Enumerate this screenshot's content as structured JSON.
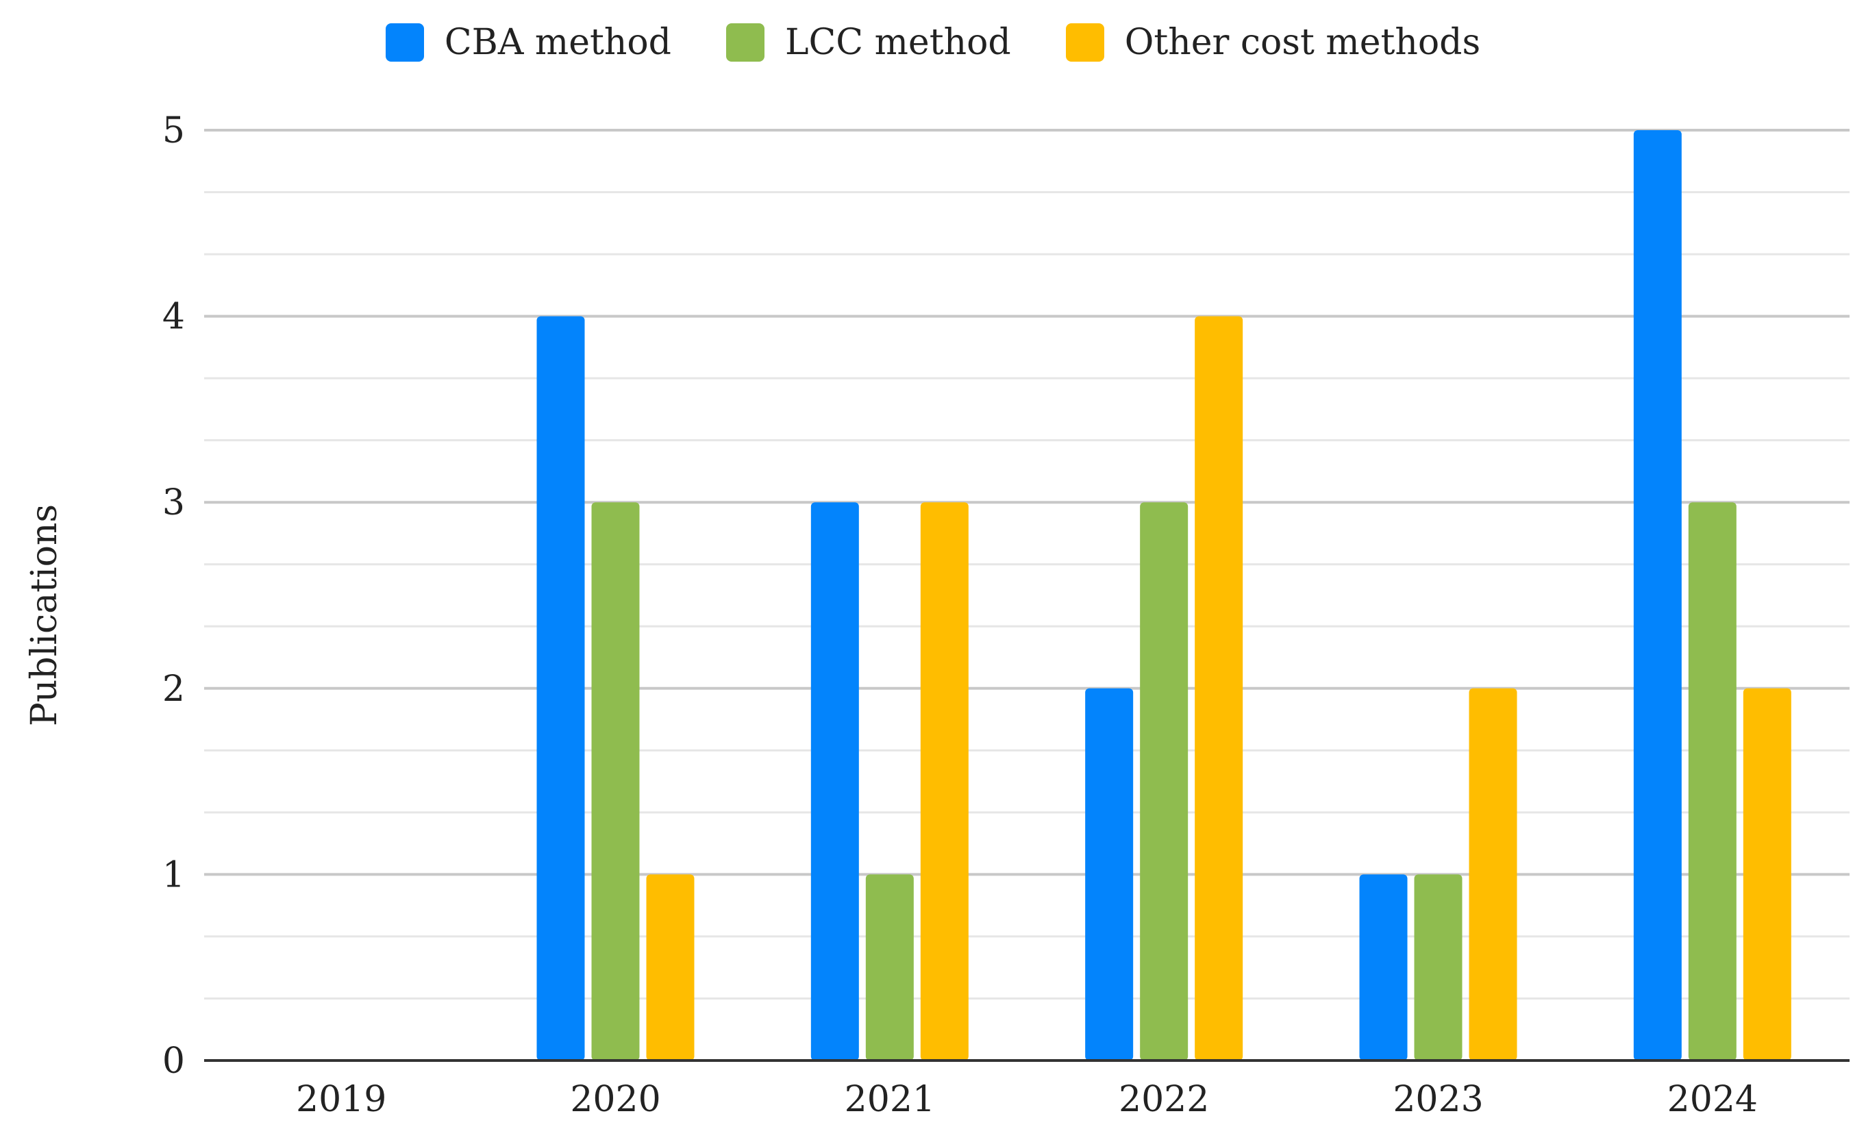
{
  "chart_data": {
    "type": "bar",
    "title": "",
    "xlabel": "",
    "ylabel": "Publications",
    "categories": [
      "2019",
      "2020",
      "2021",
      "2022",
      "2023",
      "2024"
    ],
    "series": [
      {
        "name": "CBA method",
        "color": "#0384FC",
        "values": [
          0,
          4,
          3,
          2,
          1,
          5
        ]
      },
      {
        "name": "LCC method",
        "color": "#8FBC4F",
        "values": [
          0,
          3,
          1,
          3,
          1,
          3
        ]
      },
      {
        "name": "Other cost methods",
        "color": "#FFBD00",
        "values": [
          0,
          1,
          3,
          4,
          2,
          2
        ]
      }
    ],
    "ylim": [
      0,
      5
    ],
    "yticks": [
      "0",
      "1",
      "2",
      "3",
      "4",
      "5"
    ],
    "minor_gridlines": true,
    "legend_position": "top-center"
  }
}
